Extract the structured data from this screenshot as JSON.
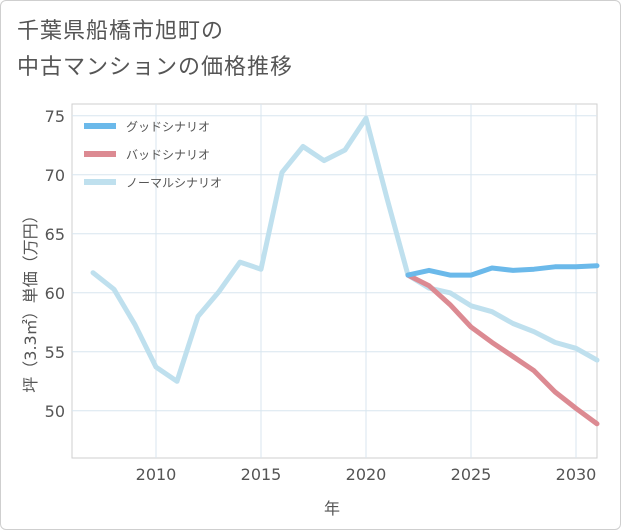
{
  "title": {
    "line1": "千葉県船橋市旭町の",
    "line2": "中古マンションの価格推移"
  },
  "chart_data": {
    "type": "line",
    "xlabel": "年",
    "ylabel": "坪（3.3㎡）単価（万円）",
    "xlim": [
      2006,
      2031
    ],
    "ylim": [
      46,
      76
    ],
    "xticks": [
      2010,
      2015,
      2020,
      2025,
      2030
    ],
    "yticks": [
      50,
      55,
      60,
      65,
      70,
      75
    ],
    "grid": true,
    "legend_position": "top-left",
    "series": [
      {
        "name": "グッドシナリオ",
        "color": "#6bb9ea",
        "x": [
          2022,
          2023,
          2024,
          2025,
          2026,
          2027,
          2028,
          2029,
          2030,
          2031
        ],
        "y": [
          61.5,
          61.9,
          61.5,
          61.5,
          62.1,
          61.9,
          62.0,
          62.2,
          62.2,
          62.3
        ]
      },
      {
        "name": "バッドシナリオ",
        "color": "#dc8a92",
        "x": [
          2022,
          2023,
          2024,
          2025,
          2026,
          2027,
          2028,
          2029,
          2030,
          2031
        ],
        "y": [
          61.5,
          60.6,
          59.0,
          57.1,
          55.8,
          54.6,
          53.4,
          51.6,
          50.2,
          48.9
        ]
      },
      {
        "name": "ノーマルシナリオ",
        "color": "#bfe0ee",
        "x": [
          2007,
          2008,
          2009,
          2010,
          2011,
          2012,
          2013,
          2014,
          2015,
          2016,
          2017,
          2018,
          2019,
          2020,
          2021,
          2022,
          2023,
          2024,
          2025,
          2026,
          2027,
          2028,
          2029,
          2030,
          2031
        ],
        "y": [
          61.7,
          60.3,
          57.3,
          53.7,
          52.5,
          58.0,
          60.1,
          62.6,
          62.0,
          70.2,
          72.4,
          71.2,
          72.1,
          74.8,
          68.0,
          61.5,
          60.4,
          60.0,
          58.9,
          58.4,
          57.4,
          56.7,
          55.8,
          55.3,
          54.3
        ]
      }
    ]
  }
}
